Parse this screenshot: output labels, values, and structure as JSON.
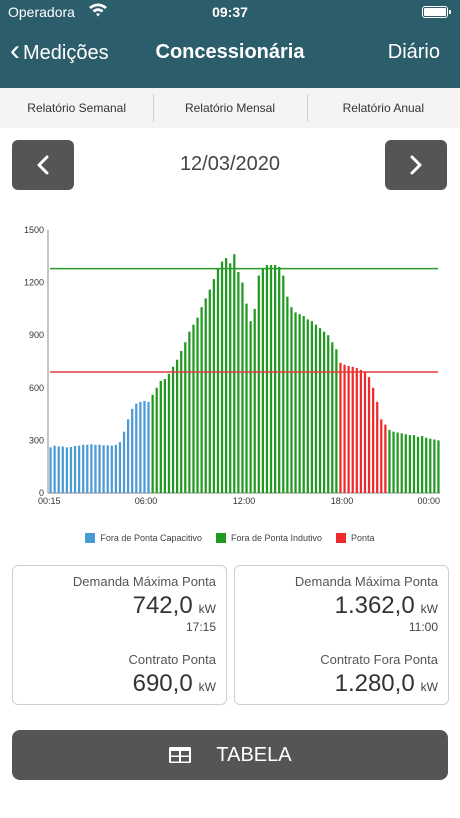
{
  "status_bar": {
    "carrier": "Operadora",
    "time": "09:37"
  },
  "nav": {
    "back_label": "Medições",
    "title": "Concessionária",
    "right_label": "Diário"
  },
  "tabs": [
    "Relatório Semanal",
    "Relatório Mensal",
    "Relatório Anual"
  ],
  "date": "12/03/2020",
  "colors": {
    "header": "#2c5d6a",
    "capacitivo": "#4a9ad6",
    "indutivo": "#1f9a1f",
    "ponta": "#ee2a2a",
    "contrato_fora_ponta_line": "#2a9a2a",
    "contrato_ponta_line": "#e23a3a",
    "button": "#555555"
  },
  "chart_data": {
    "type": "bar",
    "ylim": [
      0,
      1500
    ],
    "y_ticks": [
      "0",
      "300",
      "600",
      "900",
      "1200",
      "1500"
    ],
    "x_ticks": [
      "00:15",
      "06:00",
      "12:00",
      "18:00",
      "00:00"
    ],
    "intervals_per_day": 96,
    "series": [
      {
        "name": "Fora de Ponta Capacitivo",
        "color": "#4a9ad6",
        "start_index": 0,
        "values": [
          260,
          270,
          265,
          265,
          260,
          262,
          268,
          270,
          275,
          275,
          278,
          275,
          275,
          272,
          272,
          270,
          275,
          290,
          350,
          420,
          480,
          510,
          520,
          525,
          520
        ]
      },
      {
        "name": "Fora de Ponta Indutivo",
        "color": "#1f9a1f",
        "start_index": 25,
        "values": [
          560,
          600,
          640,
          650,
          680,
          720,
          760,
          810,
          860,
          920,
          960,
          1000,
          1060,
          1110,
          1160,
          1220,
          1280,
          1320,
          1340,
          1310,
          1362,
          1260,
          1200,
          1080,
          980,
          1050,
          1240,
          1280,
          1300,
          1300,
          1300,
          1290,
          1240,
          1120,
          1060,
          1030,
          1020,
          1010,
          990,
          980,
          960,
          940,
          920,
          900,
          860,
          820
        ]
      },
      {
        "name": "Ponta",
        "color": "#ee2a2a",
        "start_index": 71,
        "values": [
          742,
          732,
          724,
          720,
          712,
          702,
          690,
          660,
          600,
          520,
          420,
          390
        ]
      },
      {
        "name": "Fora de Ponta Indutivo",
        "color": "#1f9a1f",
        "start_index": 83,
        "values": [
          360,
          350,
          345,
          340,
          335,
          330,
          330,
          320,
          325,
          315,
          310,
          305,
          300
        ]
      }
    ],
    "reference_lines": [
      {
        "value": 1280,
        "color": "#2a9a2a"
      },
      {
        "value": 690,
        "color": "#e23a3a"
      }
    ],
    "legend": [
      {
        "label": "Fora de Ponta Capacitivo",
        "color": "#4a9ad6"
      },
      {
        "label": "Fora de Ponta Indutivo",
        "color": "#1f9a1f"
      },
      {
        "label": "Ponta",
        "color": "#ee2a2a"
      }
    ]
  },
  "cards": {
    "left": {
      "demanda_label": "Demanda Máxima Ponta",
      "demanda_value": "742,0",
      "demanda_unit": "kW",
      "demanda_time": "17:15",
      "contrato_label": "Contrato Ponta",
      "contrato_value": "690,0",
      "contrato_unit": "kW"
    },
    "right": {
      "demanda_label": "Demanda Máxima Ponta",
      "demanda_value": "1.362,0",
      "demanda_unit": "kW",
      "demanda_time": "11:00",
      "contrato_label": "Contrato Fora Ponta",
      "contrato_value": "1.280,0",
      "contrato_unit": "kW"
    }
  },
  "table_button": {
    "label": "TABELA",
    "icon": "table-icon"
  }
}
